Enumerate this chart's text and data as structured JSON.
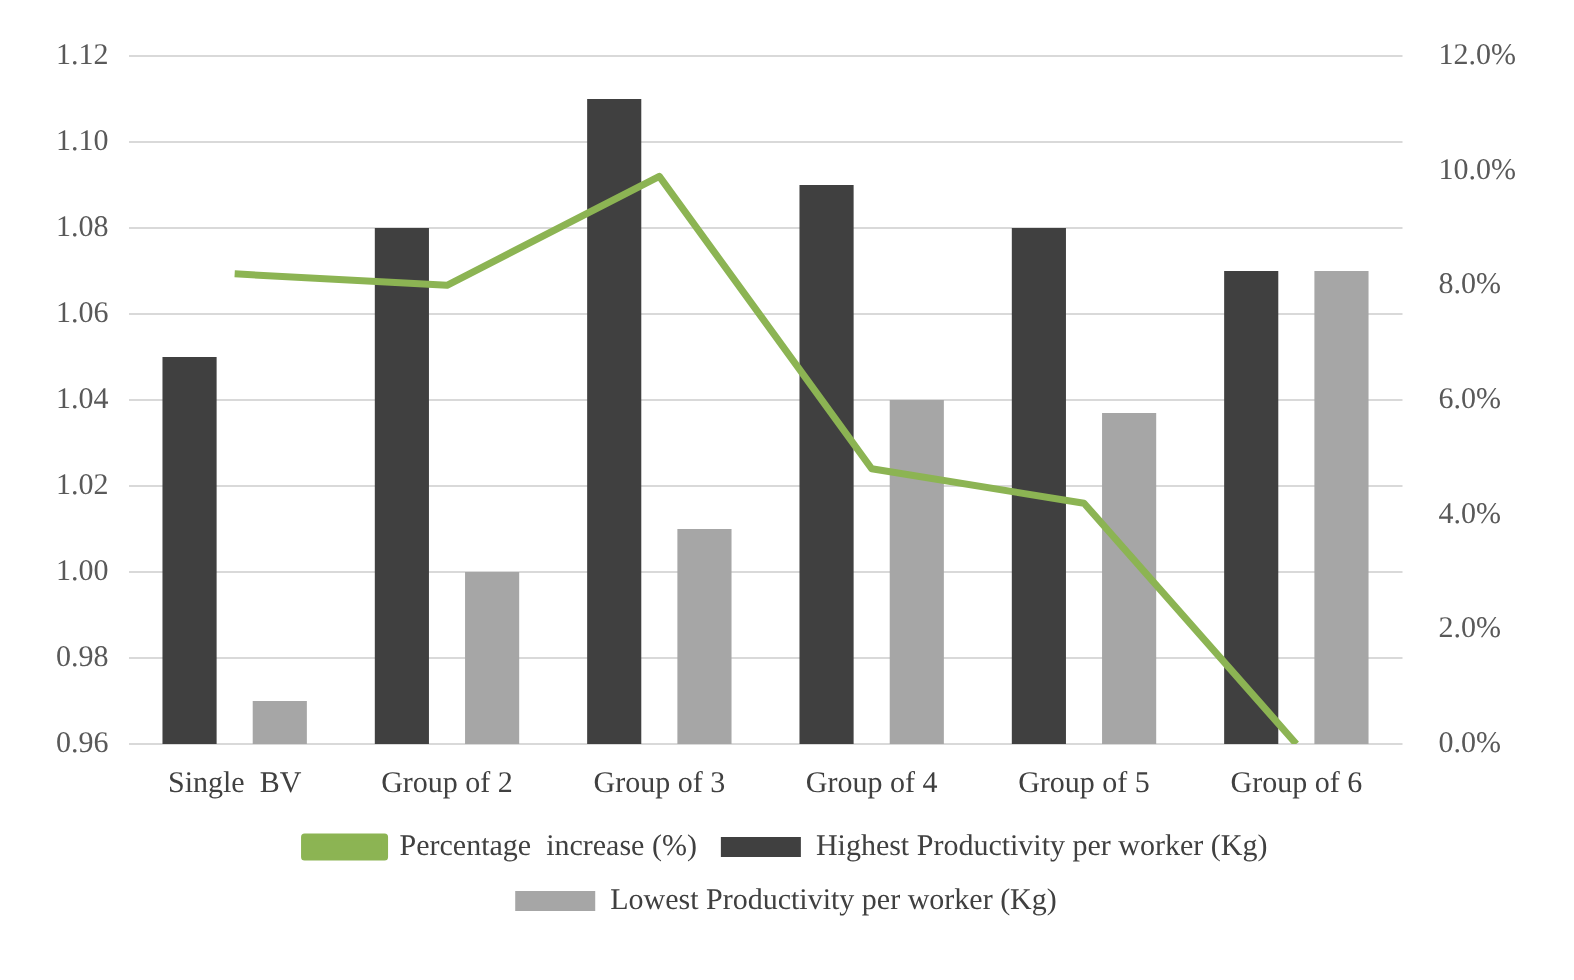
{
  "chart_data": {
    "type": "bar",
    "categories": [
      "Single  BV",
      "Group of 2",
      "Group of 3",
      "Group of 4",
      "Group of 5",
      "Group of 6"
    ],
    "series": [
      {
        "name": "Highest Productivity per worker (Kg)",
        "color": "#404040",
        "values": [
          1.05,
          1.08,
          1.11,
          1.09,
          1.08,
          1.07
        ]
      },
      {
        "name": "Lowest Productivity per worker (Kg)",
        "color": "#a6a6a6",
        "values": [
          0.97,
          1.0,
          1.01,
          1.04,
          1.037,
          1.07
        ]
      },
      {
        "name": "Percentage  increase (%)",
        "type": "line",
        "axis": "y2",
        "color": "#8cb453",
        "values": [
          8.2,
          8.0,
          9.9,
          4.8,
          4.2,
          0
        ]
      }
    ],
    "ylim": [
      0.96,
      1.12
    ],
    "yticks": [
      {
        "value": 0.96,
        "label": "0.96"
      },
      {
        "value": 0.98,
        "label": "0.98"
      },
      {
        "value": 1.0,
        "label": "1.00"
      },
      {
        "value": 1.02,
        "label": "1.02"
      },
      {
        "value": 1.04,
        "label": "1.04"
      },
      {
        "value": 1.06,
        "label": "1.06"
      },
      {
        "value": 1.08,
        "label": "1.08"
      },
      {
        "value": 1.1,
        "label": "1.10"
      },
      {
        "value": 1.12,
        "label": "1.12"
      }
    ],
    "y2lim": [
      0,
      12
    ],
    "y2ticks": [
      {
        "value": 0,
        "label": "0.0%"
      },
      {
        "value": 2,
        "label": "2.0%"
      },
      {
        "value": 4,
        "label": "4.0%"
      },
      {
        "value": 6,
        "label": "6.0%"
      },
      {
        "value": 8,
        "label": "8.0%"
      },
      {
        "value": 10,
        "label": "10.0%"
      },
      {
        "value": 12,
        "label": "12.0%"
      }
    ],
    "grid": "y",
    "legend": "bottom",
    "marker": "none",
    "line_style": "solid"
  }
}
